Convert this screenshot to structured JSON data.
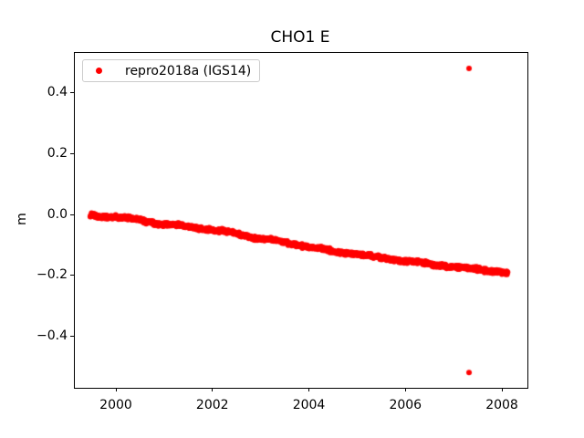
{
  "figure": {
    "title": "CHO1 E",
    "background_color": "#ffffff",
    "spine_color": "#000000"
  },
  "chart_data": {
    "type": "scatter",
    "title": "CHO1 E",
    "xlabel": "",
    "ylabel": "m",
    "grid": false,
    "legend_position": "upper left",
    "xlim": [
      1999.13,
      2008.51
    ],
    "ylim": [
      -0.566,
      0.534
    ],
    "xticks": [
      2000,
      2002,
      2004,
      2006,
      2008
    ],
    "xtick_labels": [
      "2000",
      "2002",
      "2004",
      "2006",
      "2008"
    ],
    "yticks": [
      0.4,
      0.2,
      0.0,
      -0.2,
      -0.4
    ],
    "ytick_labels": [
      "0.4",
      "0.2",
      "0.0",
      "−0.2",
      "−0.4"
    ],
    "series": [
      {
        "name": "repro2018a (IGS14)",
        "color": "#ff0000",
        "marker": "circle",
        "marker_px": 3,
        "x_start": 1999.45,
        "x_end": 2008.1,
        "n_points": 1300,
        "scatter_sigma_m": 0.004,
        "trend_m_per_yr": -0.0217,
        "trend_anchors": [
          [
            1999.45,
            0.001
          ],
          [
            1999.7,
            -0.003
          ],
          [
            2000.0,
            -0.006
          ],
          [
            2000.5,
            -0.015
          ],
          [
            2001.0,
            -0.03
          ],
          [
            2001.5,
            -0.037
          ],
          [
            2002.0,
            -0.048
          ],
          [
            2002.5,
            -0.06
          ],
          [
            2003.0,
            -0.078
          ],
          [
            2003.3,
            -0.082
          ],
          [
            2004.0,
            -0.104
          ],
          [
            2004.5,
            -0.117
          ],
          [
            2005.0,
            -0.128
          ],
          [
            2005.5,
            -0.139
          ],
          [
            2006.0,
            -0.15
          ],
          [
            2006.5,
            -0.159
          ],
          [
            2007.0,
            -0.17
          ],
          [
            2007.5,
            -0.177
          ],
          [
            2008.1,
            -0.188
          ]
        ],
        "outliers": [
          [
            2007.3,
            0.483
          ],
          [
            2007.3,
            -0.516
          ]
        ]
      }
    ]
  }
}
